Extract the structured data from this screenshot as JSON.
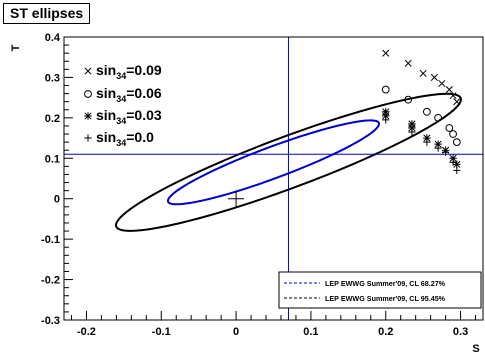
{
  "chart_data": {
    "type": "scatter",
    "title": "ST ellipses",
    "xlabel": "S",
    "ylabel": "T",
    "xlim": [
      -0.23,
      0.33
    ],
    "ylim": [
      -0.3,
      0.4
    ],
    "xticks": [
      -0.2,
      -0.1,
      0,
      0.1,
      0.2,
      0.3
    ],
    "xtick_labels": [
      "-0.2",
      "-0.1",
      "0",
      "0.1",
      "0.2",
      "0.3"
    ],
    "yticks": [
      -0.3,
      -0.2,
      -0.1,
      0,
      0.1,
      0.2,
      0.3,
      0.4
    ],
    "ytick_labels": [
      "-0.3",
      "-0.2",
      "-0.1",
      "0",
      "0.1",
      "0.2",
      "0.3",
      "0.4"
    ],
    "reference_point": {
      "s": 0,
      "t": 0,
      "marker": "+"
    },
    "crosshair": {
      "s": 0.07,
      "t": 0.11,
      "color": "#0000cc"
    },
    "ellipses": [
      {
        "label": "LEP EWWG Summer'09, CL 68.27%",
        "color": "#0000cc",
        "line": "dashed",
        "center": [
          0.05,
          0.09
        ],
        "angle_deg": 35.6,
        "a": 0.1718,
        "b": 0.0338
      },
      {
        "label": "LEP EWWG Summer'09, CL 95.45%",
        "color": "#000000",
        "line": "dashed",
        "center": [
          0.07,
          0.09
        ],
        "angle_deg": 35.6,
        "a": 0.2807,
        "b": 0.0554
      }
    ],
    "series": [
      {
        "name": "sin34=0.09",
        "name_base": "sin",
        "name_sub": "34",
        "name_value": "=0.09",
        "marker": "x",
        "points": [
          [
            0.2,
            0.36
          ],
          [
            0.23,
            0.335
          ],
          [
            0.25,
            0.31
          ],
          [
            0.265,
            0.3
          ],
          [
            0.275,
            0.285
          ],
          [
            0.285,
            0.27
          ],
          [
            0.29,
            0.255
          ],
          [
            0.295,
            0.24
          ]
        ]
      },
      {
        "name": "sin34=0.06",
        "name_base": "sin",
        "name_sub": "34",
        "name_value": "=0.06",
        "marker": "o",
        "points": [
          [
            0.2,
            0.27
          ],
          [
            0.23,
            0.245
          ],
          [
            0.255,
            0.215
          ],
          [
            0.27,
            0.2
          ],
          [
            0.285,
            0.175
          ],
          [
            0.29,
            0.16
          ],
          [
            0.295,
            0.14
          ]
        ]
      },
      {
        "name": "sin34=0.03",
        "name_base": "sin",
        "name_sub": "34",
        "name_value": "=0.03",
        "marker": "*",
        "points": [
          [
            0.2,
            0.215
          ],
          [
            0.2,
            0.205
          ],
          [
            0.235,
            0.185
          ],
          [
            0.235,
            0.175
          ],
          [
            0.255,
            0.15
          ],
          [
            0.27,
            0.135
          ],
          [
            0.28,
            0.12
          ],
          [
            0.29,
            0.1
          ],
          [
            0.295,
            0.085
          ]
        ]
      },
      {
        "name": "sin34=0.0",
        "name_base": "sin",
        "name_sub": "34",
        "name_value": "=0.0",
        "marker": "+",
        "points": [
          [
            0.2,
            0.195
          ],
          [
            0.235,
            0.165
          ],
          [
            0.255,
            0.14
          ],
          [
            0.27,
            0.125
          ],
          [
            0.28,
            0.115
          ],
          [
            0.29,
            0.09
          ],
          [
            0.295,
            0.07
          ]
        ]
      }
    ]
  }
}
